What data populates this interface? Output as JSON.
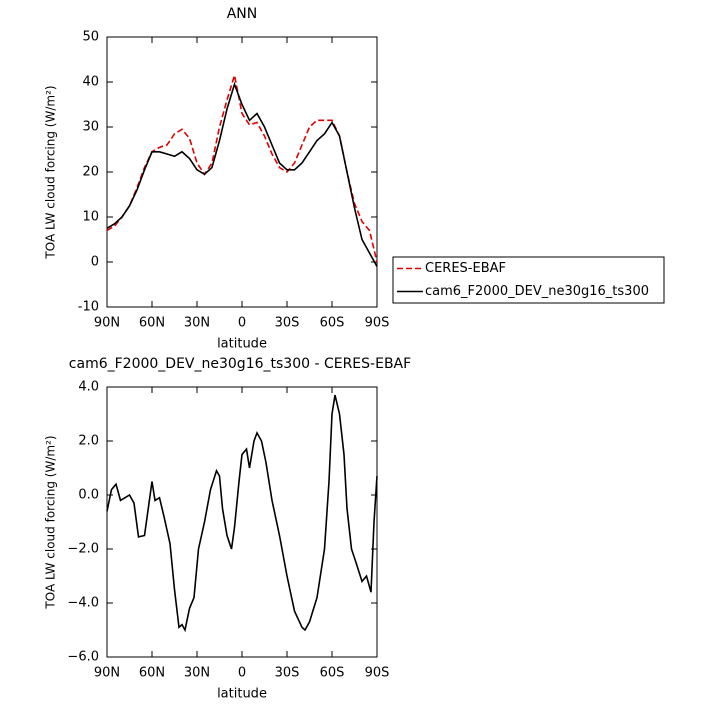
{
  "chart_data": [
    {
      "type": "line",
      "title": "ANN",
      "xlabel": "latitude",
      "ylabel": "TOA LW cloud forcing (W/m²)",
      "x": [
        90,
        85,
        80,
        75,
        70,
        65,
        60,
        55,
        50,
        45,
        40,
        35,
        30,
        25,
        20,
        15,
        10,
        5,
        0,
        -5,
        -10,
        -15,
        -20,
        -25,
        -30,
        -35,
        -40,
        -45,
        -50,
        -55,
        -60,
        -65,
        -70,
        -75,
        -80,
        -85,
        -90
      ],
      "series": [
        {
          "name": "CERES-EBAF",
          "color": "#e00000",
          "line_style": "dashed",
          "values": [
            7,
            8,
            10,
            12.5,
            16.5,
            21,
            24.5,
            25.5,
            26,
            28.5,
            29.5,
            27.5,
            22,
            19.5,
            22,
            30,
            36,
            41.5,
            33,
            30.5,
            31,
            28,
            24,
            21,
            20,
            22,
            26,
            30,
            31.5,
            31.5,
            31.5,
            28,
            20,
            13,
            9,
            7,
            0
          ]
        },
        {
          "name": "cam6_F2000_DEV_ne30g16_ts300",
          "color": "#000000",
          "line_style": "solid",
          "values": [
            7.5,
            8.5,
            10,
            12.5,
            16,
            20.5,
            24.5,
            24.5,
            24,
            23.5,
            24.5,
            23,
            20.5,
            19.5,
            21,
            27,
            34,
            39.5,
            35,
            31.5,
            33,
            30,
            26,
            22,
            20.5,
            20.5,
            22,
            24.5,
            27,
            28.5,
            31,
            28,
            20,
            12,
            5,
            2,
            -1
          ]
        }
      ],
      "xlim": [
        90,
        -90
      ],
      "xticks": [
        {
          "value": 90,
          "label": "90N"
        },
        {
          "value": 60,
          "label": "60N"
        },
        {
          "value": 30,
          "label": "30N"
        },
        0,
        {
          "value": -30,
          "label": "30S"
        },
        {
          "value": -60,
          "label": "60S"
        },
        {
          "value": -90,
          "label": "90S"
        }
      ],
      "ylim": [
        -10,
        50
      ],
      "yticks": [
        -10,
        0,
        10,
        20,
        30,
        40,
        50
      ],
      "legend": "right"
    },
    {
      "type": "line",
      "title": "cam6_F2000_DEV_ne30g16_ts300 - CERES-EBAF",
      "xlabel": "latitude",
      "ylabel": "TOA LW cloud forcing (W/m²)",
      "x": [
        90,
        87,
        84,
        81,
        78,
        75,
        72,
        69,
        65,
        62,
        60,
        58,
        55,
        52,
        48,
        45,
        42,
        40,
        38,
        35,
        32,
        29,
        25,
        21,
        17,
        15,
        13,
        10,
        7,
        5,
        2,
        0,
        -3,
        -5,
        -8,
        -10,
        -13,
        -16,
        -20,
        -25,
        -30,
        -35,
        -40,
        -42,
        -45,
        -50,
        -55,
        -58,
        -60,
        -62,
        -65,
        -68,
        -70,
        -73,
        -76,
        -80,
        -83,
        -86,
        -88,
        -90
      ],
      "series": [
        {
          "color": "#000000",
          "line_style": "solid",
          "values": [
            -0.6,
            0.2,
            0.4,
            -0.2,
            -0.1,
            0.0,
            -0.3,
            -1.55,
            -1.5,
            -0.3,
            0.5,
            -0.2,
            -0.1,
            -0.8,
            -1.8,
            -3.5,
            -4.9,
            -4.8,
            -5.0,
            -4.2,
            -3.8,
            -2.0,
            -1.0,
            0.2,
            0.9,
            0.7,
            -0.5,
            -1.5,
            -2.0,
            -1.2,
            0.5,
            1.5,
            1.7,
            1.0,
            2.0,
            2.3,
            2.0,
            1.2,
            -0.2,
            -1.5,
            -3.0,
            -4.3,
            -4.9,
            -5.0,
            -4.7,
            -3.8,
            -2.0,
            0.5,
            3.0,
            3.7,
            3.0,
            1.5,
            -0.5,
            -2.0,
            -2.5,
            -3.2,
            -3.0,
            -3.6,
            -1.0,
            0.7
          ]
        }
      ],
      "xlim": [
        90,
        -90
      ],
      "xticks": [
        {
          "value": 90,
          "label": "90N"
        },
        {
          "value": 60,
          "label": "60N"
        },
        {
          "value": 30,
          "label": "30N"
        },
        0,
        {
          "value": -30,
          "label": "30S"
        },
        {
          "value": -60,
          "label": "60S"
        },
        {
          "value": -90,
          "label": "90S"
        }
      ],
      "ylim": [
        -6,
        4
      ],
      "yticks": [
        {
          "value": -6,
          "label": "−6.0"
        },
        {
          "value": -4,
          "label": "−4.0"
        },
        {
          "value": -2,
          "label": "−2.0"
        },
        {
          "value": 0,
          "label": "0.0"
        },
        {
          "value": 2,
          "label": "2.0"
        },
        {
          "value": 4,
          "label": "4.0"
        }
      ]
    }
  ]
}
